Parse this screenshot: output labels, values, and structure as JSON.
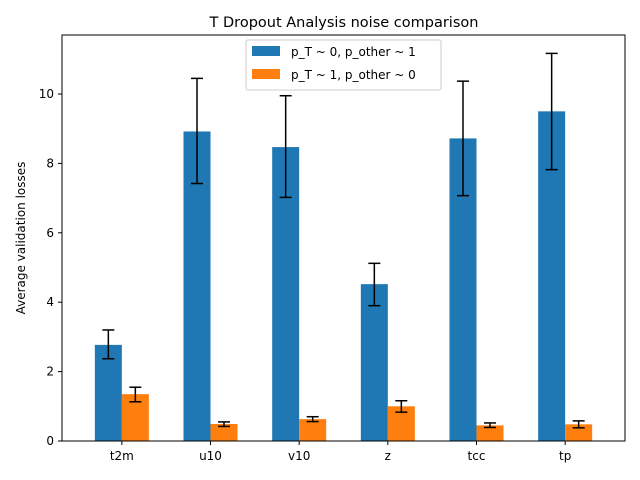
{
  "chart_data": {
    "type": "bar",
    "title": "T Dropout Analysis noise comparison",
    "xlabel": "",
    "ylabel": "Average validation losses",
    "categories": [
      "t2m",
      "u10",
      "v10",
      "z",
      "tcc",
      "tp"
    ],
    "ylim": [
      0,
      11.7
    ],
    "yticks": [
      0,
      2,
      4,
      6,
      8,
      10
    ],
    "grid": false,
    "legend_position": "top-center",
    "series": [
      {
        "name": "p_T ~ 0, p_other ~ 1",
        "color": "#1f77b4",
        "values": [
          2.77,
          8.92,
          8.47,
          4.52,
          8.72,
          9.5
        ],
        "err_low": [
          2.37,
          7.42,
          7.02,
          3.9,
          7.07,
          7.82
        ],
        "err_high": [
          3.2,
          10.45,
          9.95,
          5.12,
          10.37,
          11.17
        ]
      },
      {
        "name": "p_T ~ 1, p_other ~ 0",
        "color": "#ff7f0e",
        "values": [
          1.35,
          0.49,
          0.63,
          1.0,
          0.45,
          0.48
        ],
        "err_low": [
          1.13,
          0.42,
          0.56,
          0.83,
          0.39,
          0.38
        ],
        "err_high": [
          1.55,
          0.55,
          0.7,
          1.16,
          0.52,
          0.58
        ]
      }
    ]
  }
}
